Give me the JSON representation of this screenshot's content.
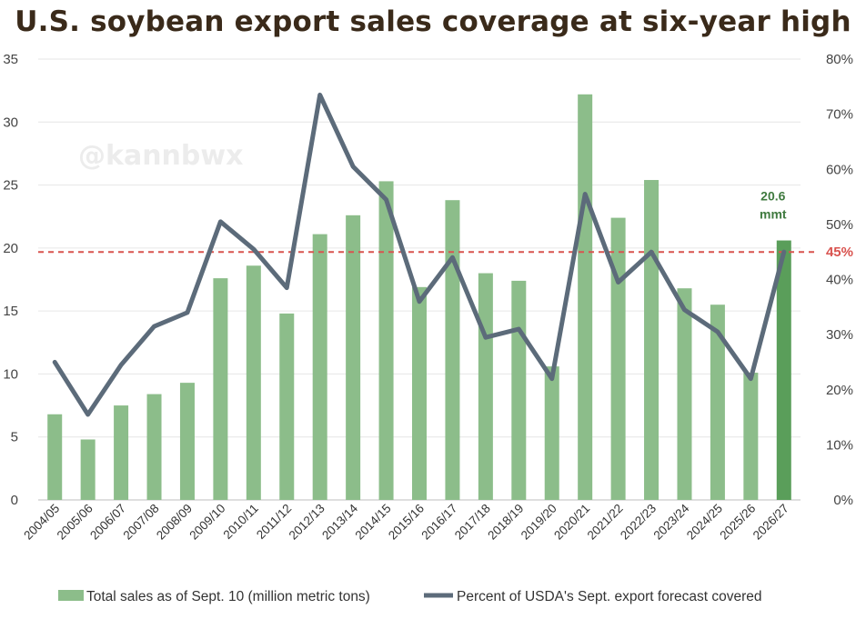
{
  "chart_data": {
    "type": "bar",
    "title": "U.S. soybean export sales coverage at six-year high",
    "watermark": "@kannbwx",
    "categories": [
      "2004/05",
      "2005/06",
      "2006/07",
      "2007/08",
      "2008/09",
      "2009/10",
      "2010/11",
      "2011/12",
      "2012/13",
      "2013/14",
      "2014/15",
      "2015/16",
      "2016/17",
      "2017/18",
      "2018/19",
      "2019/20",
      "2020/21",
      "2021/22",
      "2022/23",
      "2023/24",
      "2024/25",
      "2025/26",
      "2026/27"
    ],
    "series": [
      {
        "name": "Total sales as of Sept. 10 (million metric tons)",
        "type": "bar",
        "axis": "left",
        "color": "#8cbd8a",
        "highlight_color": "#5a9e5a",
        "values": [
          6.8,
          4.8,
          7.5,
          8.4,
          9.3,
          17.6,
          18.6,
          14.8,
          21.1,
          22.6,
          25.3,
          16.9,
          23.8,
          18.0,
          17.4,
          10.6,
          32.2,
          22.4,
          25.4,
          16.8,
          15.5,
          10.1,
          20.6
        ]
      },
      {
        "name": "Percent of USDA's Sept. export forecast covered",
        "type": "line",
        "axis": "right",
        "color": "#5c6b7a",
        "values": [
          25,
          15.5,
          24.5,
          31.5,
          34,
          50.5,
          45.5,
          38.5,
          73.5,
          60.5,
          54.5,
          36,
          44,
          29.5,
          31,
          22,
          55.5,
          39.5,
          45,
          34.5,
          30.5,
          22,
          45
        ]
      }
    ],
    "ylim_left": [
      0,
      35
    ],
    "yticks_left": [
      "0",
      "5",
      "10",
      "15",
      "20",
      "25",
      "30",
      "35"
    ],
    "ylim_right": [
      0,
      80
    ],
    "yticks_right": [
      "0%",
      "10%",
      "20%",
      "30%",
      "40%",
      "50%",
      "60%",
      "70%",
      "80%"
    ],
    "reference_line": {
      "value_pct": 45,
      "label": "45%",
      "color": "#d9534f",
      "style": "dashed"
    },
    "annotation": {
      "line1": "20.6",
      "line2": "mmt"
    },
    "grid": true,
    "legend_position": "bottom"
  }
}
